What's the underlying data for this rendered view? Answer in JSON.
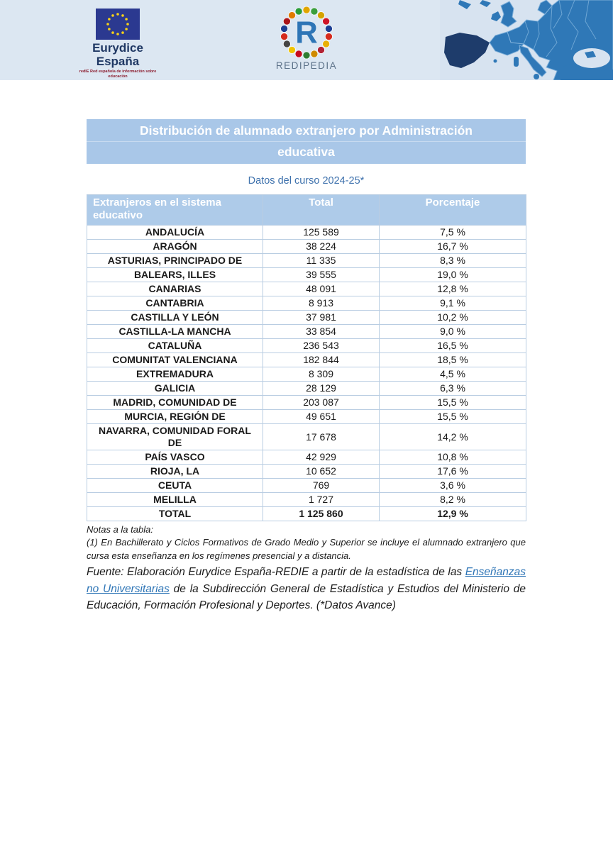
{
  "header": {
    "eurydice": {
      "title_line1": "Eurydice",
      "title_line2": "España",
      "subtext": "redIE Red española de información sobre educación"
    },
    "redipedia": {
      "letter": "R",
      "label": "REDIPEDIA"
    }
  },
  "title": {
    "line1": "Distribución de alumnado extranjero por Administración",
    "line2": "educativa"
  },
  "subtitle": "Datos del curso 2024-25*",
  "table": {
    "columns": [
      "Extranjeros en el sistema educativo",
      "Total",
      "Porcentaje"
    ],
    "rows": [
      {
        "name": "ANDALUCÍA",
        "total": "125 589",
        "pct": "7,5 %"
      },
      {
        "name": "ARAGÓN",
        "total": "38 224",
        "pct": "16,7 %"
      },
      {
        "name": "ASTURIAS, PRINCIPADO DE",
        "total": "11 335",
        "pct": "8,3 %"
      },
      {
        "name": "BALEARS, ILLES",
        "total": "39 555",
        "pct": "19,0 %"
      },
      {
        "name": "CANARIAS",
        "total": "48 091",
        "pct": "12,8 %"
      },
      {
        "name": "CANTABRIA",
        "total": "8 913",
        "pct": "9,1 %"
      },
      {
        "name": "CASTILLA Y LEÓN",
        "total": "37 981",
        "pct": "10,2 %"
      },
      {
        "name": "CASTILLA-LA MANCHA",
        "total": "33 854",
        "pct": "9,0 %"
      },
      {
        "name": "CATALUÑA",
        "total": "236 543",
        "pct": "16,5 %"
      },
      {
        "name": "COMUNITAT VALENCIANA",
        "total": "182 844",
        "pct": "18,5 %"
      },
      {
        "name": "EXTREMADURA",
        "total": "8 309",
        "pct": "4,5 %"
      },
      {
        "name": "GALICIA",
        "total": "28 129",
        "pct": "6,3 %"
      },
      {
        "name": "MADRID, COMUNIDAD DE",
        "total": "203 087",
        "pct": "15,5 %"
      },
      {
        "name": "MURCIA, REGIÓN DE",
        "total": "49 651",
        "pct": "15,5 %"
      },
      {
        "name": "NAVARRA, COMUNIDAD FORAL DE",
        "total": "17 678",
        "pct": "14,2 %"
      },
      {
        "name": "PAÍS VASCO",
        "total": "42 929",
        "pct": "10,8 %"
      },
      {
        "name": "RIOJA, LA",
        "total": "10 652",
        "pct": "17,6 %"
      },
      {
        "name": "CEUTA",
        "total": "769",
        "pct": "3,6 %"
      },
      {
        "name": "MELILLA",
        "total": "1 727",
        "pct": "8,2 %"
      }
    ],
    "total_row": {
      "name": "TOTAL",
      "total": "1 125 860",
      "pct": "12,9 %"
    }
  },
  "notes": {
    "title": "Notas a la tabla:",
    "note1": "(1) En Bachillerato y Ciclos Formativos de Grado Medio y Superior se incluye el alumnado extranjero que cursa esta enseñanza en los regímenes presencial y a distancia.",
    "fuente_prefix": "Fuente: Elaboración Eurydice España-REDIE a partir de la estadística de las ",
    "fuente_link": "Enseñanzas no Universitarias",
    "fuente_suffix": " de la Subdirección General de Estadística y Estudios del Ministerio de Educación, Formación Profesional y Deportes. (*Datos Avance)"
  },
  "colors": {
    "banner_bg": "#dce7f2",
    "title_bar_bg": "#a9c7e8",
    "table_header_bg": "#aecbe9",
    "table_border": "#b9cde2",
    "accent_blue": "#2e75b6",
    "subtitle_blue": "#3f72ad",
    "map_land": "#2f78b7",
    "spain_highlight": "#1e3c6b",
    "eu_flag_navy": "#2b3990",
    "eu_star_gold": "#f7d117",
    "link_blue": "#2e75b6"
  }
}
